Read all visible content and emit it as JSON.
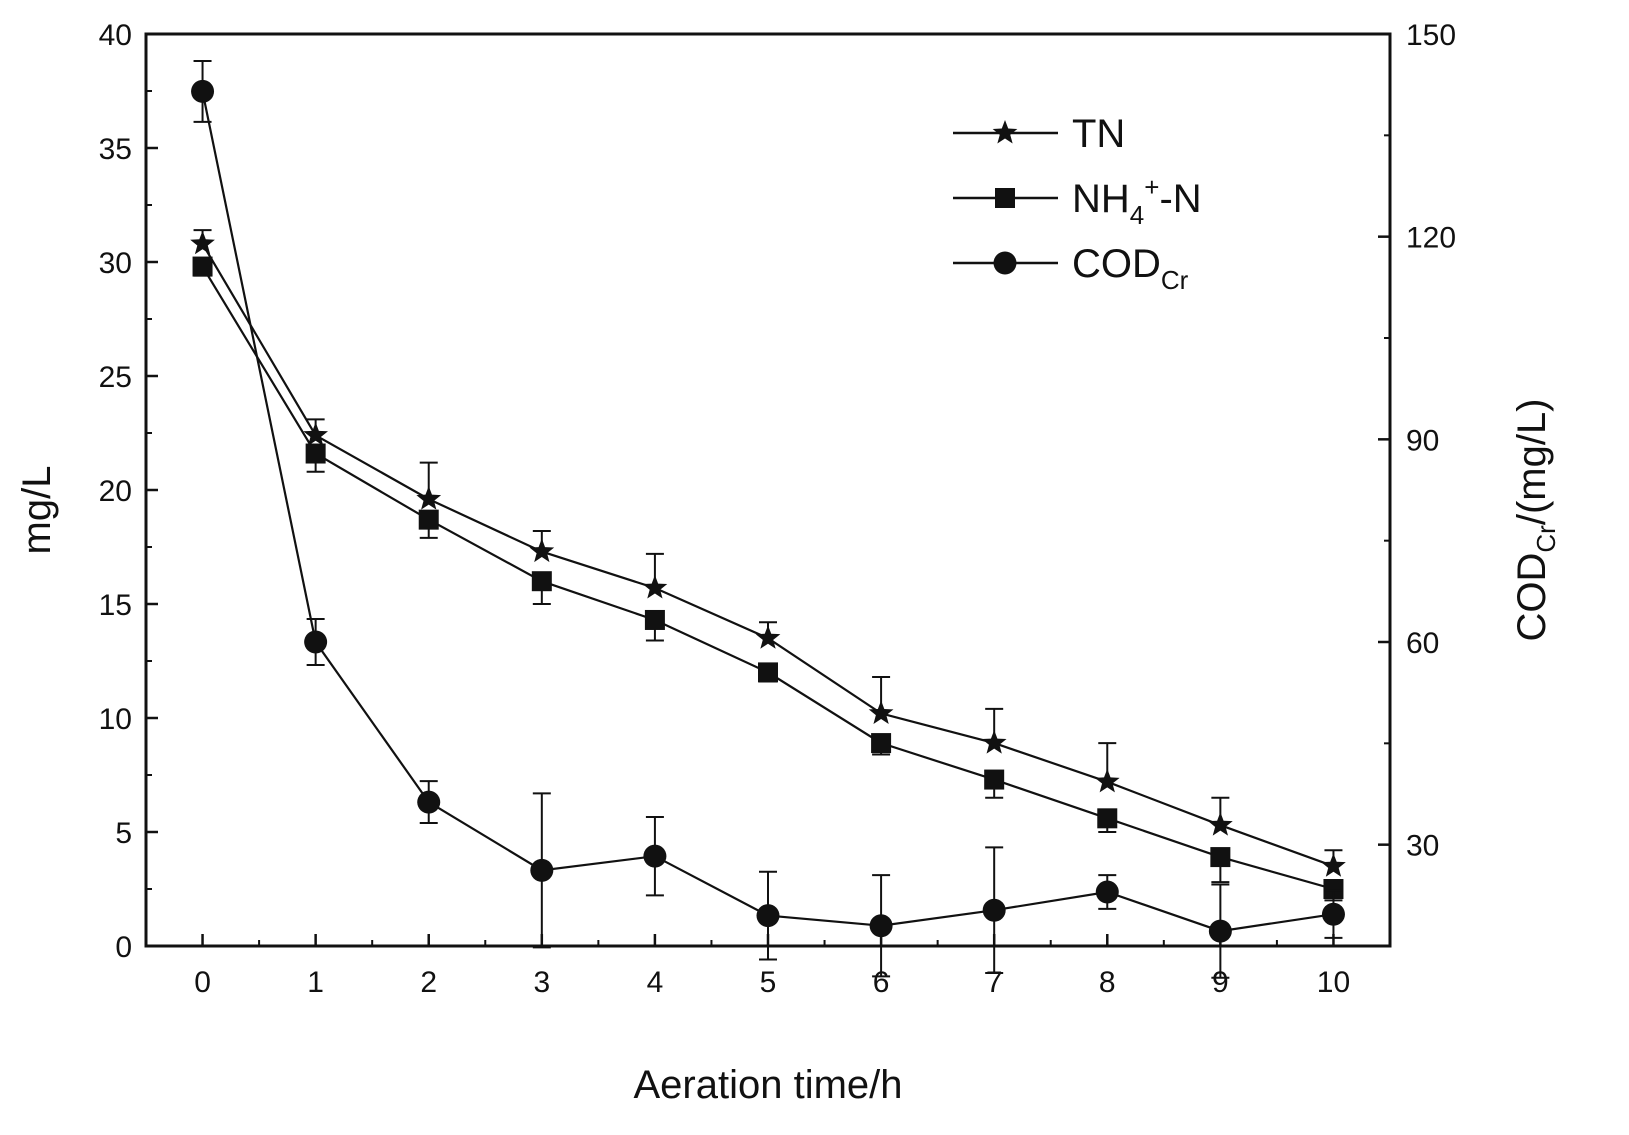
{
  "chart_data": {
    "type": "line",
    "title": "",
    "xlabel": "Aeration time/h",
    "ylabel": "mg/L",
    "y2label": {
      "main": "COD",
      "sub": "Cr",
      "suffix": "/(mg/L)"
    },
    "x": [
      0,
      1,
      2,
      3,
      4,
      5,
      6,
      7,
      8,
      9,
      10
    ],
    "xlim": [
      -0.5,
      10.5
    ],
    "ylim": [
      0,
      40
    ],
    "y2lim": [
      15,
      150
    ],
    "x_ticks": [
      "0",
      "1",
      "2",
      "3",
      "4",
      "5",
      "6",
      "7",
      "8",
      "9",
      "10"
    ],
    "y_ticks": [
      "0",
      "5",
      "10",
      "15",
      "20",
      "25",
      "30",
      "35",
      "40"
    ],
    "y2_ticks": [
      "30",
      "60",
      "90",
      "120",
      "150"
    ],
    "grid": false,
    "legend_position": "top-right",
    "series": [
      {
        "name": "TN",
        "axis": "left",
        "marker": "star",
        "values": [
          30.8,
          22.4,
          19.6,
          17.3,
          15.7,
          13.5,
          10.2,
          8.9,
          7.2,
          5.3,
          3.5
        ],
        "error": [
          0.6,
          0.7,
          1.6,
          0.9,
          1.5,
          0.7,
          1.6,
          1.5,
          1.7,
          1.2,
          0.7
        ]
      },
      {
        "name": "NH4+-N",
        "axis": "left",
        "marker": "square",
        "values": [
          29.8,
          21.6,
          18.7,
          16.0,
          14.3,
          12.0,
          8.9,
          7.3,
          5.6,
          3.9,
          2.5
        ],
        "error": [
          0.4,
          0.8,
          0.8,
          1.0,
          0.9,
          0.4,
          0.5,
          0.8,
          0.6,
          1.1,
          0.5
        ]
      },
      {
        "name": "CODCr",
        "axis": "right",
        "marker": "circle",
        "values": [
          141.5,
          60.0,
          36.3,
          26.2,
          28.3,
          19.5,
          18.0,
          20.3,
          23.0,
          17.2,
          19.7
        ],
        "error": [
          4.5,
          3.4,
          3.1,
          11.4,
          5.8,
          6.5,
          7.5,
          9.3,
          2.5,
          6.9,
          3.5
        ]
      }
    ],
    "legend": [
      {
        "key": "TN",
        "label": "TN",
        "sup": "",
        "sub": "",
        "suffix": ""
      },
      {
        "key": "NH4+-N",
        "label": "NH",
        "sub": "4",
        "sup": "+",
        "suffix": "-N"
      },
      {
        "key": "CODCr",
        "label": "COD",
        "sub": "Cr",
        "sup": "",
        "suffix": ""
      }
    ]
  }
}
